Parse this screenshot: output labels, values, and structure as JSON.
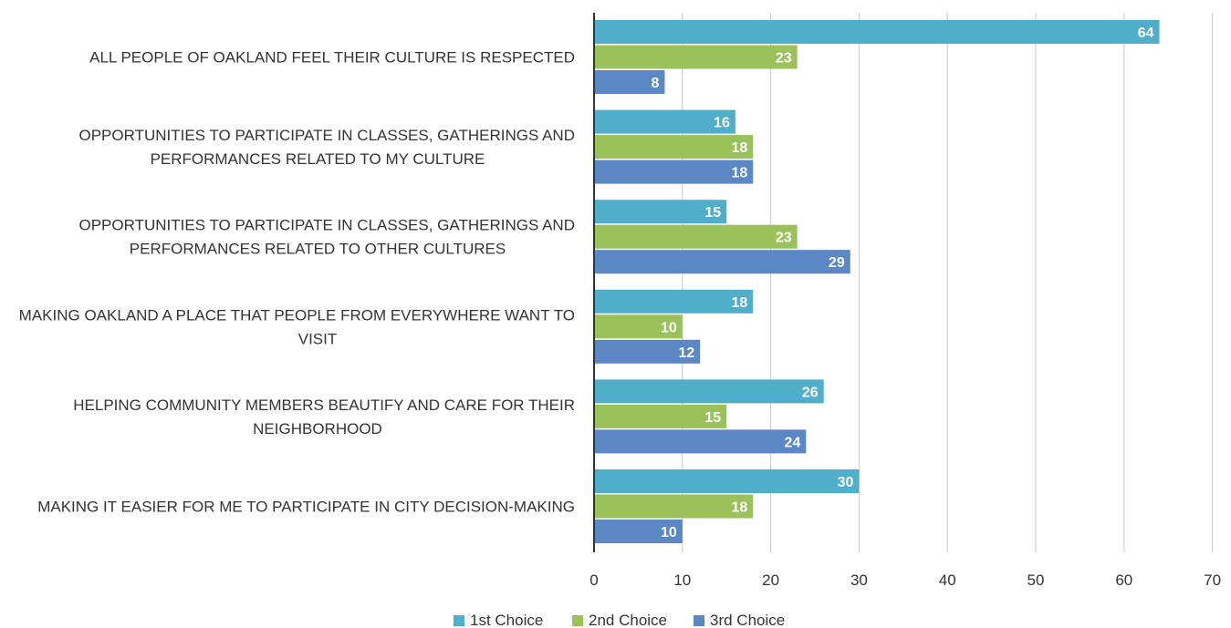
{
  "chart_data": {
    "type": "bar",
    "orientation": "horizontal",
    "categories": [
      [
        "ALL PEOPLE OF OAKLAND FEEL THEIR CULTURE IS RESPECTED"
      ],
      [
        "OPPORTUNITIES TO PARTICIPATE IN CLASSES, GATHERINGS AND",
        "PERFORMANCES RELATED TO MY CULTURE"
      ],
      [
        "OPPORTUNITIES TO PARTICIPATE IN CLASSES, GATHERINGS AND",
        "PERFORMANCES RELATED TO OTHER CULTURES"
      ],
      [
        "MAKING OAKLAND A PLACE THAT PEOPLE FROM EVERYWHERE WANT TO",
        "VISIT"
      ],
      [
        "HELPING COMMUNITY MEMBERS BEAUTIFY AND CARE FOR THEIR",
        "NEIGHBORHOOD"
      ],
      [
        "MAKING IT EASIER FOR ME TO PARTICIPATE IN CITY DECISION-MAKING"
      ]
    ],
    "series": [
      {
        "name": "1st Choice",
        "color": "#4fafcb",
        "values": [
          64,
          16,
          15,
          18,
          26,
          30
        ]
      },
      {
        "name": "2nd Choice",
        "color": "#9bc15a",
        "values": [
          23,
          18,
          23,
          10,
          15,
          18
        ]
      },
      {
        "name": "3rd Choice",
        "color": "#5b87c5",
        "values": [
          8,
          18,
          29,
          12,
          24,
          10
        ]
      }
    ],
    "xlim": [
      0,
      70
    ],
    "xticks": [
      0,
      10,
      20,
      30,
      40,
      50,
      60,
      70
    ],
    "grid": true,
    "legend_position": "bottom",
    "title": "",
    "xlabel": "",
    "ylabel": ""
  }
}
